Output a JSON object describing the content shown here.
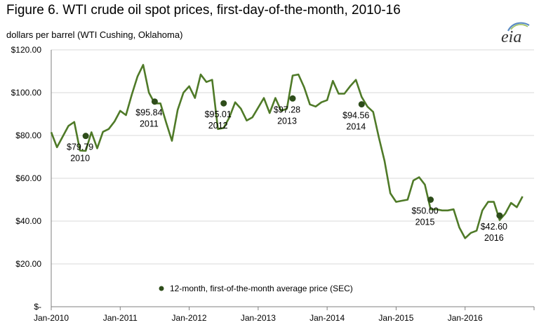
{
  "header": {
    "title": "Figure 6. WTI crude oil spot prices, first-day-of-the-month, 2010-16",
    "subtitle": "dollars per barrel (WTI Cushing, Oklahoma)",
    "logo": "eia"
  },
  "chart_data": {
    "type": "line",
    "title": "Figure 6. WTI crude oil spot prices, first-day-of-the-month, 2010-16",
    "ylabel": "dollars per barrel (WTI Cushing, Oklahoma)",
    "xlabel": "",
    "ylim": [
      0,
      120
    ],
    "y_ticks": [
      {
        "value": 0,
        "label": "$-"
      },
      {
        "value": 20,
        "label": "$20.00"
      },
      {
        "value": 40,
        "label": "$40.00"
      },
      {
        "value": 60,
        "label": "$60.00"
      },
      {
        "value": 80,
        "label": "$80.00"
      },
      {
        "value": 100,
        "label": "$100.00"
      },
      {
        "value": 120,
        "label": "$120.00"
      }
    ],
    "x_ticks": [
      {
        "value": "2010-01",
        "label": "Jan-2010"
      },
      {
        "value": "2011-01",
        "label": "Jan-2011"
      },
      {
        "value": "2012-01",
        "label": "Jan-2012"
      },
      {
        "value": "2013-01",
        "label": "Jan-2013"
      },
      {
        "value": "2014-01",
        "label": "Jan-2014"
      },
      {
        "value": "2015-01",
        "label": "Jan-2015"
      },
      {
        "value": "2016-01",
        "label": "Jan-2016"
      }
    ],
    "x_range": [
      "2010-01",
      "2016-12"
    ],
    "grid": "horizontal",
    "line_color": "#4f7a28",
    "marker_color": "#2e4d1a",
    "monthly_prices": [
      81.5,
      74.5,
      79.5,
      84.5,
      86.3,
      73.0,
      72.8,
      81.5,
      74.0,
      81.7,
      83.0,
      86.5,
      91.5,
      89.5,
      99.0,
      107.5,
      113.0,
      100.0,
      95.0,
      95.0,
      86.0,
      77.5,
      92.0,
      100.0,
      103.0,
      97.5,
      108.5,
      105.0,
      106.0,
      83.0,
      83.5,
      88.5,
      95.5,
      92.5,
      87.0,
      88.5,
      93.0,
      97.5,
      90.5,
      97.5,
      91.5,
      92.5,
      108.0,
      108.5,
      102.5,
      94.5,
      93.5,
      95.5,
      96.5,
      105.5,
      99.5,
      99.5,
      103.0,
      106.0,
      98.0,
      93.5,
      91.0,
      79.0,
      68.0,
      53.0,
      49.0,
      49.5,
      50.0,
      59.0,
      60.5,
      57.0,
      45.5,
      45.5,
      45.0,
      45.0,
      45.5,
      37.0,
      32.0,
      34.5,
      35.5,
      45.0,
      49.0,
      49.0,
      40.5,
      43.5,
      48.5,
      46.5,
      51.5
    ],
    "monthly_start": "2010-01",
    "averages": [
      {
        "year": "2010",
        "x": "2010-07",
        "value": 79.79,
        "label": "$79.79",
        "year_label": "2010"
      },
      {
        "year": "2011",
        "x": "2011-07",
        "value": 95.84,
        "label": "$95.84",
        "year_label": "2011"
      },
      {
        "year": "2012",
        "x": "2012-07",
        "value": 95.01,
        "label": "$95.01",
        "year_label": "2012"
      },
      {
        "year": "2013",
        "x": "2013-07",
        "value": 97.28,
        "label": "$97.28",
        "year_label": "2013"
      },
      {
        "year": "2014",
        "x": "2014-07",
        "value": 94.56,
        "label": "$94.56",
        "year_label": "2014"
      },
      {
        "year": "2015",
        "x": "2015-07",
        "value": 50.0,
        "label": "$50.00",
        "year_label": "2015"
      },
      {
        "year": "2016",
        "x": "2016-07",
        "value": 42.6,
        "label": "$42.60",
        "year_label": "2016"
      }
    ],
    "legend": {
      "placement": "bottom-center",
      "entries": [
        {
          "name": "12-month, first-of-the-month average price (SEC)",
          "marker": "dot"
        }
      ]
    }
  }
}
